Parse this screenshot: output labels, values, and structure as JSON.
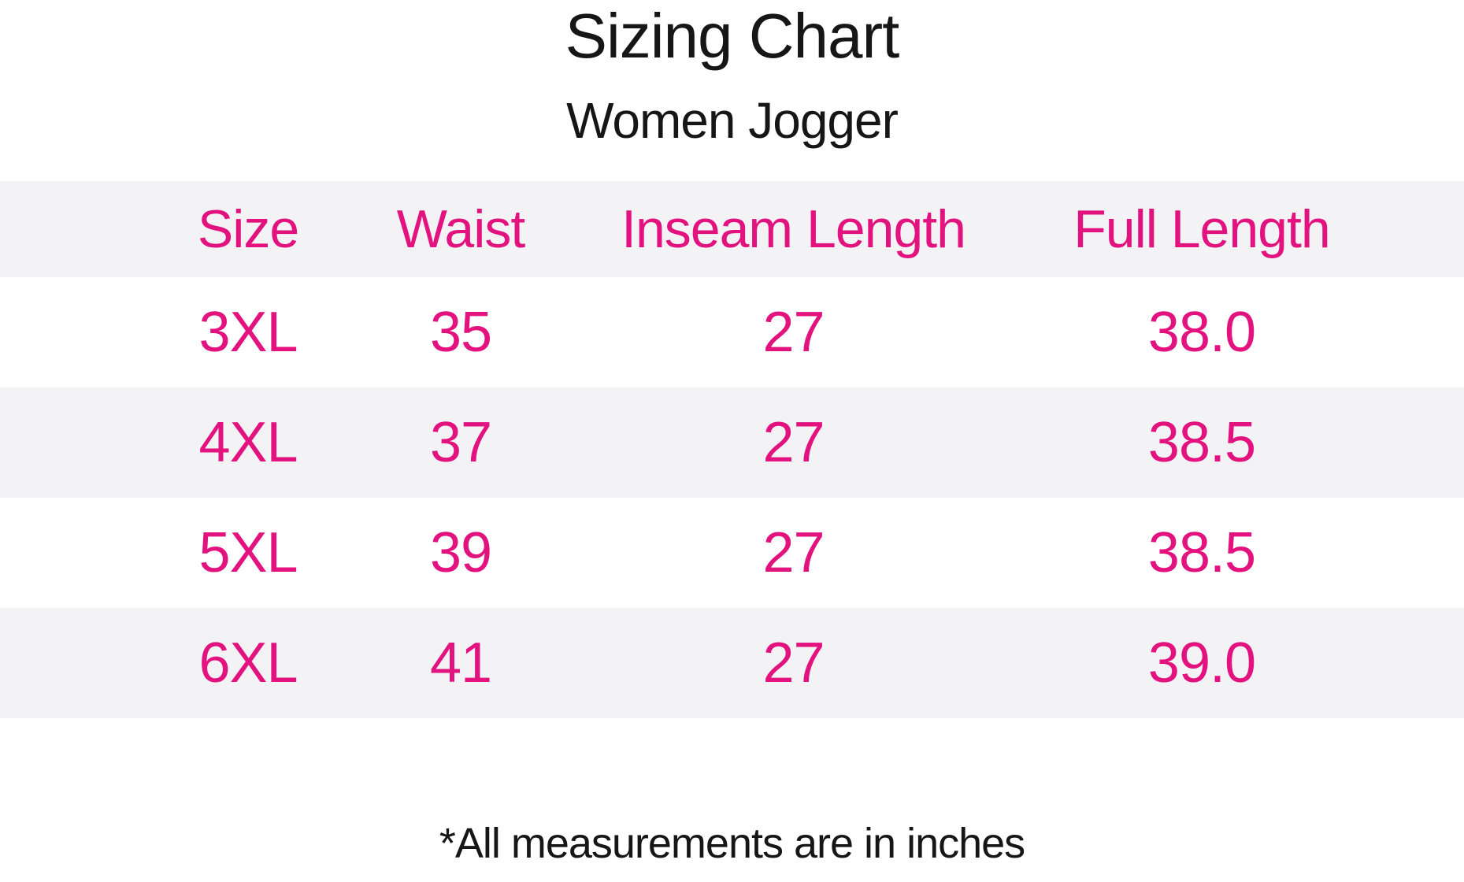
{
  "page": {
    "title": "Sizing Chart",
    "subtitle": "Women Jogger",
    "footnote": "*All measurements are in inches"
  },
  "colors": {
    "accent_pink": "#E2127E",
    "row_alt_gray": "#F3F3F6",
    "text_black": "#161616",
    "background": "#FFFFFF"
  },
  "table": {
    "headers": [
      "Size",
      "Waist",
      "Inseam Length",
      "Full Length"
    ],
    "rows": [
      [
        "3XL",
        "35",
        "27",
        "38.0"
      ],
      [
        "4XL",
        "37",
        "27",
        "38.5"
      ],
      [
        "5XL",
        "39",
        "27",
        "38.5"
      ],
      [
        "6XL",
        "41",
        "27",
        "39.0"
      ]
    ],
    "units": "inches"
  }
}
